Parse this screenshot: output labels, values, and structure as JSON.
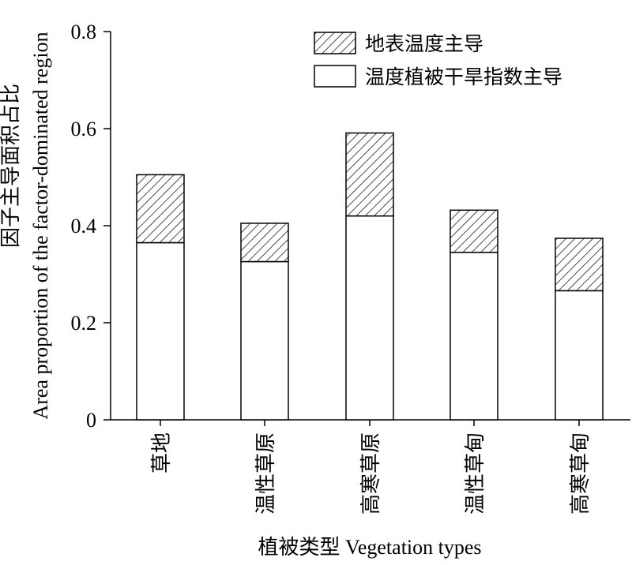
{
  "chart_data": {
    "type": "bar",
    "stacked": true,
    "categories": [
      "草地",
      "温性草原",
      "高寒草原",
      "温性草甸",
      "高寒草甸"
    ],
    "series": [
      {
        "name": "温度植被干旱指数主导",
        "values": [
          0.365,
          0.326,
          0.42,
          0.345,
          0.266
        ],
        "fill": "#ffffff"
      },
      {
        "name": "地表温度主导",
        "values": [
          0.14,
          0.079,
          0.171,
          0.087,
          0.108
        ],
        "fill": "hatch"
      }
    ],
    "ylabel_lines": [
      "因子主导面积占比",
      "Area proportion of the factor-dominated region"
    ],
    "xlabel": "植被类型 Vegetation types",
    "ylim": [
      0,
      0.8
    ],
    "yticks": [
      "0",
      "0.2",
      "0.4",
      "0.6",
      "0.8"
    ],
    "grid": false,
    "legend_position": "top-right",
    "legend_order": [
      "地表温度主导",
      "温度植被干旱指数主导"
    ]
  }
}
